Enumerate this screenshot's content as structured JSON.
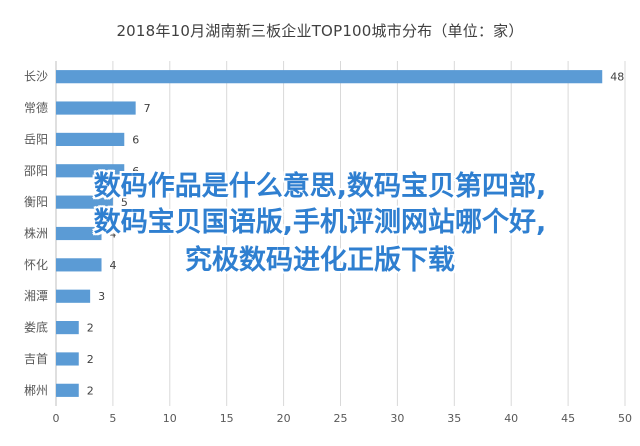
{
  "chart_data": {
    "type": "bar",
    "orientation": "horizontal",
    "title": "2018年10月湖南新三板企业TOP100城市分布（单位：家）",
    "categories": [
      "长沙",
      "常德",
      "岳阳",
      "邵阳",
      "衡阳",
      "株洲",
      "怀化",
      "湘潭",
      "娄底",
      "吉首",
      "郴州"
    ],
    "values": [
      48,
      7,
      6,
      6,
      5,
      4,
      4,
      3,
      2,
      2,
      2
    ],
    "xlim": [
      0,
      50
    ],
    "xticks": [
      0,
      5,
      10,
      15,
      20,
      25,
      30,
      35,
      40,
      45,
      50
    ],
    "bar_color": "#5b9bd5",
    "grid": true
  },
  "overlay": {
    "line1": "数码作品是什么意思,数码宝贝第四部,",
    "line2": "数码宝贝国语版,手机评测网站哪个好,",
    "line3": "究极数码进化正版下载",
    "color": "#2f7fd0"
  }
}
